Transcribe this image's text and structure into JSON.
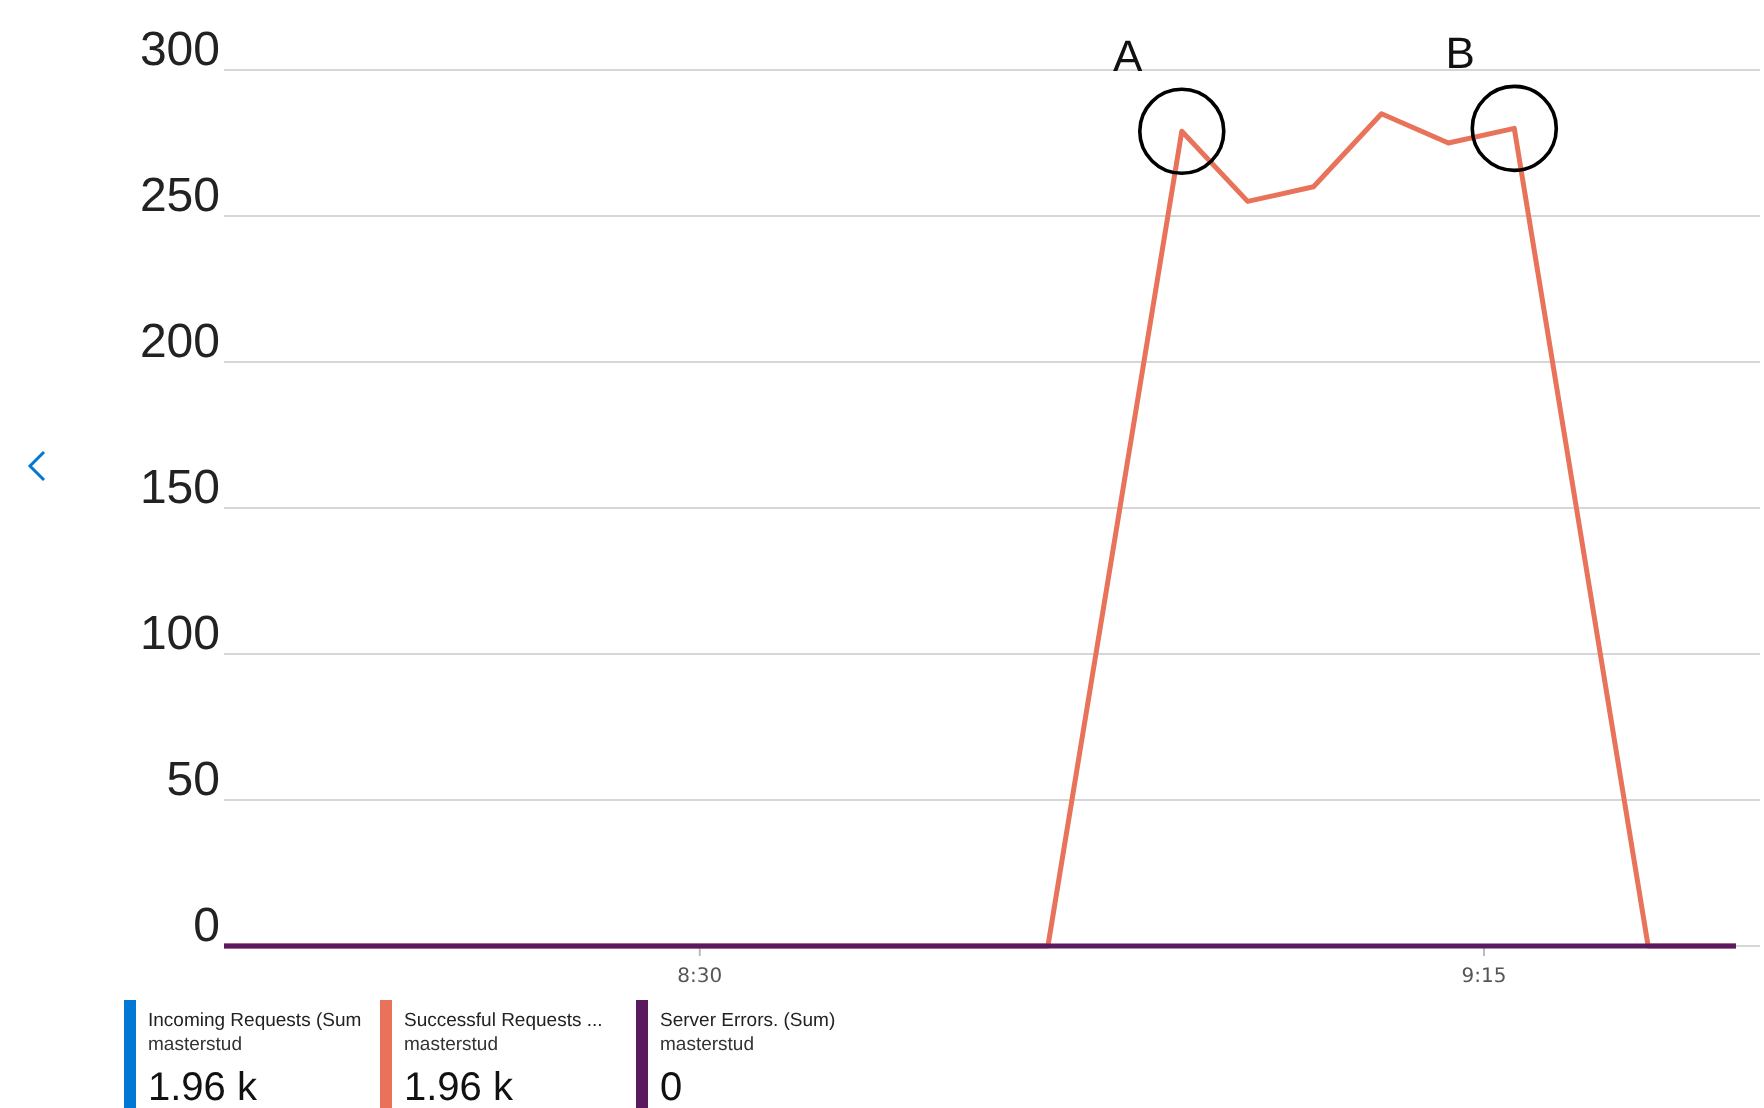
{
  "chart_data": {
    "type": "line",
    "x": [
      8.045,
      8.833,
      8.961,
      9.024,
      9.087,
      9.152,
      9.216,
      9.279,
      9.407,
      9.491
    ],
    "series": [
      {
        "name": "Incoming Requests (Sum",
        "color": "#0078d4",
        "values": [
          null,
          null,
          null,
          null,
          null,
          null,
          null,
          null,
          null,
          null
        ]
      },
      {
        "name": "Successful Requests ...",
        "color": "#e8735a",
        "values": [
          0,
          0,
          279,
          255,
          260,
          285,
          275,
          280,
          0,
          0
        ]
      },
      {
        "name": "Server Errors. (Sum)",
        "color": "#5a1a5e",
        "values": [
          0,
          0,
          0,
          0,
          0,
          0,
          0,
          0,
          0,
          0
        ]
      }
    ],
    "xlim": [
      8.045,
      9.514
    ],
    "ylim": [
      0,
      300
    ],
    "xticks": [
      {
        "value": 8.5,
        "label": "8:30"
      },
      {
        "value": 9.25,
        "label": "9:15"
      }
    ],
    "yticks": [
      0,
      50,
      100,
      150,
      200,
      250,
      300
    ],
    "grid": "y",
    "legend": "bottom",
    "marker": "none",
    "line_style": "solid",
    "annotations": [
      {
        "text": "A",
        "x": 8.961,
        "y": 279
      },
      {
        "text": "B",
        "x": 9.279,
        "y": 280
      },
      "masterstud",
      "1.96 k",
      "masterstud",
      "1.96 k",
      "masterstud",
      "0"
    ]
  }
}
